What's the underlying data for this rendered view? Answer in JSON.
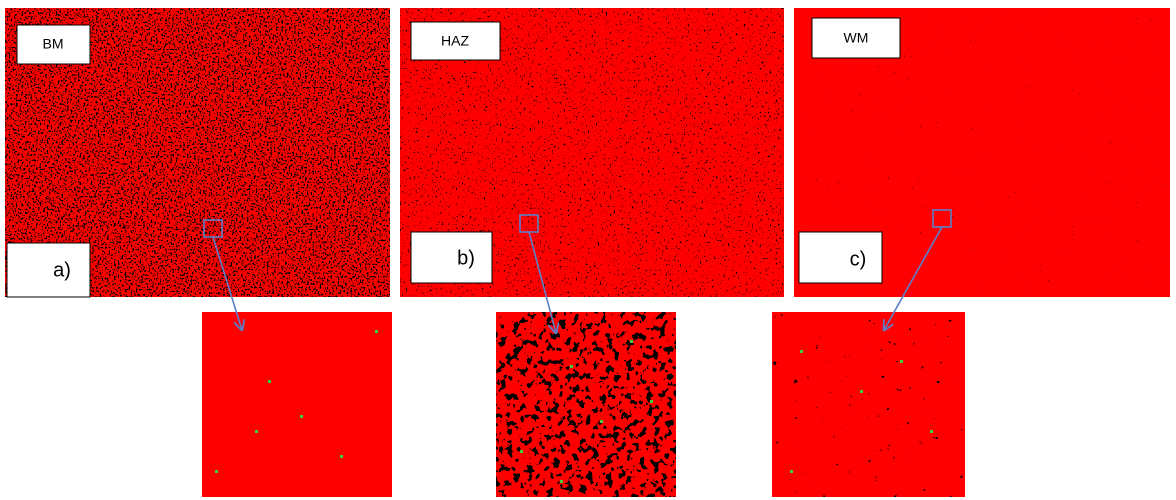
{
  "panels": [
    {
      "label": "BM",
      "tag": "a)"
    },
    {
      "label": "HAZ",
      "tag": "b)"
    },
    {
      "label": "WM",
      "tag": "c)"
    }
  ]
}
